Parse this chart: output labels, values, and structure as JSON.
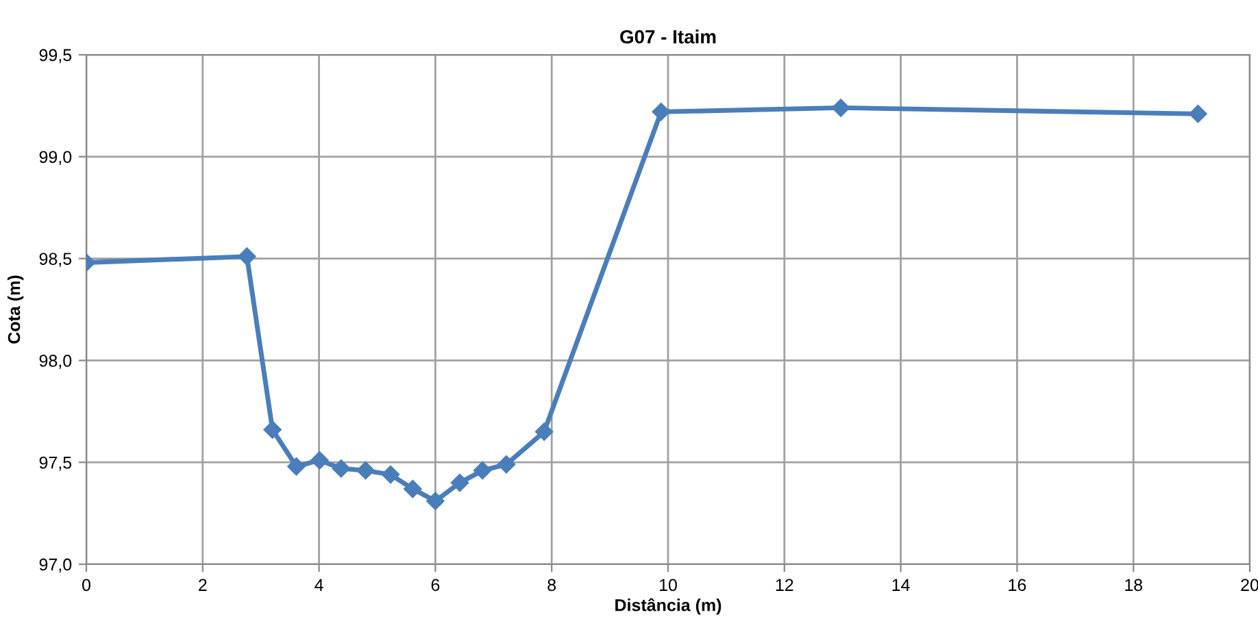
{
  "chart_data": {
    "type": "line",
    "title": "G07 - Itaim",
    "xlabel": "Distância (m)",
    "ylabel": "Cota (m)",
    "x": [
      0,
      2.76,
      3.2,
      3.61,
      4.01,
      4.38,
      4.8,
      5.23,
      5.61,
      6.0,
      6.42,
      6.81,
      7.22,
      7.87,
      9.88,
      12.97,
      19.11
    ],
    "series": [
      {
        "color": "#4a7ebb",
        "values": [
          98.48,
          98.51,
          97.66,
          97.48,
          97.51,
          97.47,
          97.46,
          97.44,
          97.37,
          97.31,
          97.4,
          97.46,
          97.49,
          97.65,
          99.22,
          99.24,
          99.21
        ]
      }
    ],
    "xlim": [
      0,
      20
    ],
    "xticks": [
      0,
      2,
      4,
      6,
      8,
      10,
      12,
      14,
      16,
      18,
      20
    ],
    "ylim": [
      97.0,
      99.5
    ],
    "yticks": [
      {
        "value": 97.0,
        "label": "97,0"
      },
      {
        "value": 97.5,
        "label": "97,5"
      },
      {
        "value": 98.0,
        "label": "98,0"
      },
      {
        "value": 98.5,
        "label": "98,5"
      },
      {
        "value": 99.0,
        "label": "99,0"
      },
      {
        "value": 99.5,
        "label": "99,5"
      }
    ],
    "grid": true,
    "marker": "diamond",
    "line_style": "solid"
  }
}
